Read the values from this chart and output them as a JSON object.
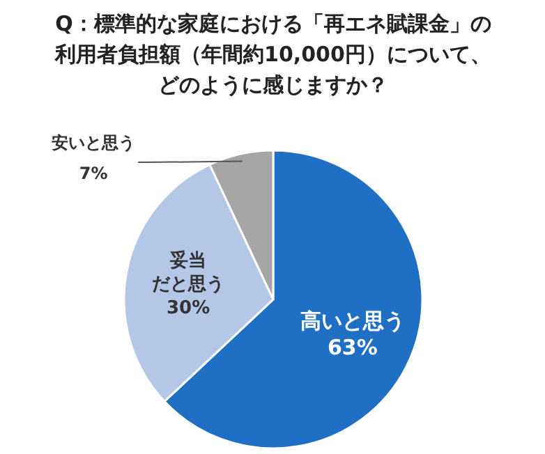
{
  "chart_data": {
    "type": "pie",
    "title": "Q：標準的な家庭における「再エネ賦課金」の利用者負担額（年間約10,000円）について、どのように感じますか？",
    "categories": [
      "高いと思う",
      "妥当だと思う",
      "安いと思う"
    ],
    "values": [
      63,
      30,
      7
    ],
    "value_labels": [
      "63%",
      "30%",
      "7%"
    ],
    "colors": [
      "#1f6fc5",
      "#b4c7e7",
      "#a6a6a6"
    ]
  }
}
